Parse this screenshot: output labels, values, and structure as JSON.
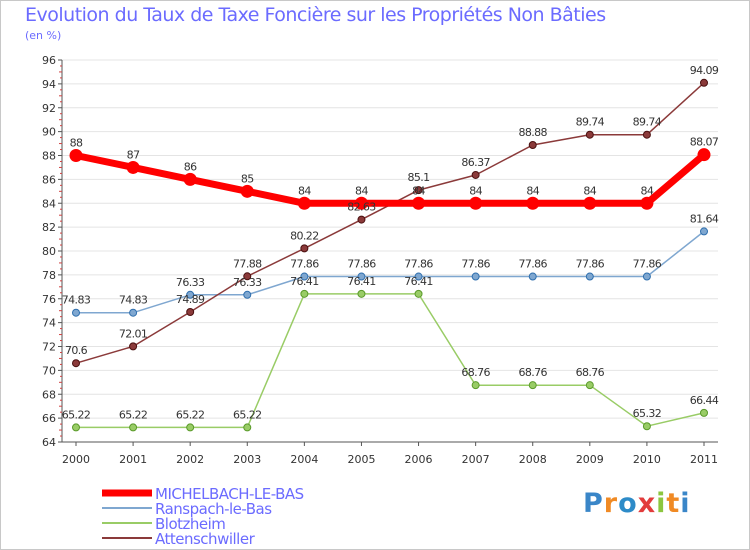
{
  "title": "Evolution du Taux de Taxe Foncière sur les Propriétés Non Bâties",
  "unit_label": "(en %)",
  "logo": {
    "text": "Proxiti",
    "letters": [
      "P",
      "r",
      "o",
      "x",
      "i",
      "t",
      "i"
    ],
    "colors": [
      "#3a86c8",
      "#f08a24",
      "#2d8bc8",
      "#e23c3c",
      "#8cc63f",
      "#f08a24",
      "#3a86c8"
    ]
  },
  "chart_data": {
    "type": "line",
    "x": [
      "2000",
      "2001",
      "2002",
      "2003",
      "2004",
      "2005",
      "2006",
      "2007",
      "2008",
      "2009",
      "2010",
      "2011"
    ],
    "ylim": [
      64,
      96
    ],
    "yticks": [
      "64",
      "66",
      "68",
      "70",
      "72",
      "74",
      "76",
      "78",
      "80",
      "82",
      "84",
      "86",
      "88",
      "90",
      "92",
      "94",
      "96"
    ],
    "grid": true,
    "series": [
      {
        "name": "MICHELBACH-LE-BAS",
        "color": "#ff0000",
        "values": [
          88,
          87,
          86,
          85,
          84,
          84,
          84,
          84,
          84,
          84,
          84,
          88.07
        ],
        "labels": [
          "88",
          "87",
          "86",
          "85",
          "84",
          "84",
          "84",
          "84",
          "84",
          "84",
          "84",
          "88.07"
        ]
      },
      {
        "name": "Ranspach-le-Bas",
        "color": "#7fa7d0",
        "values": [
          74.83,
          74.83,
          76.33,
          76.33,
          77.86,
          77.86,
          77.86,
          77.86,
          77.86,
          77.86,
          77.86,
          81.64
        ],
        "labels": [
          "74.83",
          "74.83",
          "76.33",
          "76.33",
          "77.86",
          "77.86",
          "77.86",
          "77.86",
          "77.86",
          "77.86",
          "77.86",
          "81.64"
        ]
      },
      {
        "name": "Blotzheim",
        "color": "#99cc66",
        "values": [
          65.22,
          65.22,
          65.22,
          65.22,
          76.41,
          76.41,
          76.41,
          68.76,
          68.76,
          68.76,
          65.32,
          66.44
        ],
        "labels": [
          "65.22",
          "65.22",
          "65.22",
          "65.22",
          "76.41",
          "76.41",
          "76.41",
          "68.76",
          "68.76",
          "68.76",
          "65.32",
          "66.44"
        ]
      },
      {
        "name": "Attenschwiller",
        "color": "#8b3a3a",
        "values": [
          70.6,
          72.01,
          74.89,
          77.88,
          80.22,
          82.63,
          85.1,
          86.37,
          88.88,
          89.74,
          89.74,
          94.09
        ],
        "labels": [
          "70.6",
          "72.01",
          "74.89",
          "77.88",
          "80.22",
          "82.63",
          "85.1",
          "86.37",
          "88.88",
          "89.74",
          "89.74",
          "94.09"
        ]
      }
    ]
  }
}
